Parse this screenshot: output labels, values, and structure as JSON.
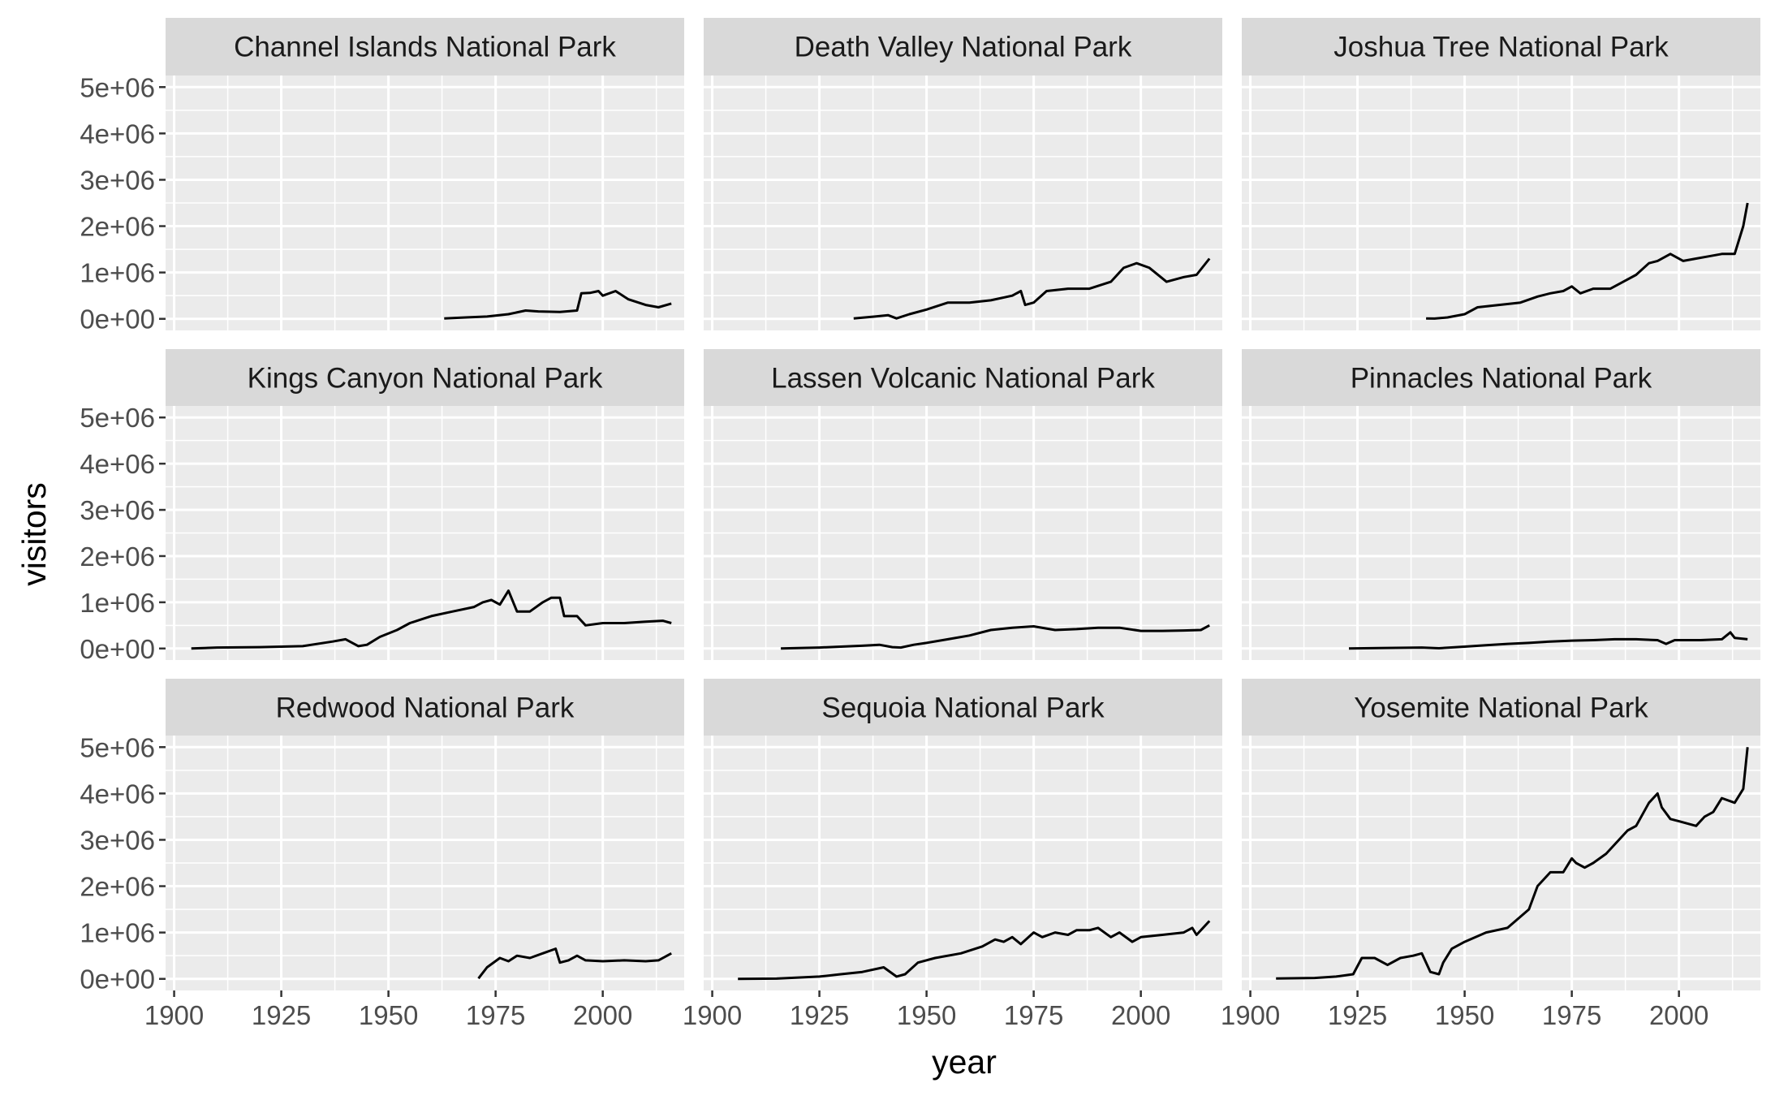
{
  "chart_data": {
    "type": "line",
    "facet_layout": "3x3",
    "xlabel": "year",
    "ylabel": "visitors",
    "xlim": [
      1898,
      2019
    ],
    "ylim": [
      -250000,
      5250000
    ],
    "x_ticks": [
      1900,
      1925,
      1950,
      1975,
      2000
    ],
    "y_ticks": [
      0,
      1000000,
      2000000,
      3000000,
      4000000,
      5000000
    ],
    "x_tick_labels": [
      "1900",
      "1925",
      "1950",
      "1975",
      "2000"
    ],
    "y_tick_labels": [
      "0e+00",
      "1e+06",
      "2e+06",
      "3e+06",
      "4e+06",
      "5e+06"
    ],
    "grid": true,
    "panels": [
      {
        "title": "Channel Islands National Park",
        "x": [
          1963,
          1968,
          1973,
          1978,
          1982,
          1985,
          1990,
          1994,
          1995,
          1997,
          1999,
          2000,
          2003,
          2006,
          2010,
          2013,
          2016
        ],
        "values": [
          10000,
          30000,
          50000,
          100000,
          180000,
          160000,
          150000,
          180000,
          550000,
          560000,
          600000,
          500000,
          600000,
          420000,
          300000,
          250000,
          330000
        ]
      },
      {
        "title": "Death Valley National Park",
        "x": [
          1933,
          1938,
          1941,
          1943,
          1946,
          1950,
          1955,
          1960,
          1965,
          1970,
          1972,
          1973,
          1975,
          1978,
          1983,
          1988,
          1993,
          1996,
          1999,
          2002,
          2006,
          2010,
          2013,
          2016
        ],
        "values": [
          10000,
          50000,
          80000,
          10000,
          100000,
          200000,
          350000,
          350000,
          400000,
          500000,
          600000,
          300000,
          350000,
          600000,
          650000,
          650000,
          800000,
          1100000,
          1200000,
          1100000,
          800000,
          900000,
          950000,
          1300000
        ]
      },
      {
        "title": "Joshua Tree National Park",
        "x": [
          1941,
          1943,
          1946,
          1950,
          1953,
          1958,
          1963,
          1967,
          1970,
          1973,
          1975,
          1977,
          1980,
          1984,
          1987,
          1990,
          1993,
          1995,
          1998,
          2001,
          2004,
          2007,
          2010,
          2013,
          2015,
          2016
        ],
        "values": [
          10000,
          5000,
          30000,
          100000,
          250000,
          300000,
          350000,
          480000,
          550000,
          600000,
          700000,
          550000,
          650000,
          650000,
          800000,
          950000,
          1200000,
          1250000,
          1400000,
          1250000,
          1300000,
          1350000,
          1400000,
          1400000,
          2000000,
          2500000
        ]
      },
      {
        "title": "Kings Canyon National Park",
        "x": [
          1904,
          1910,
          1920,
          1930,
          1937,
          1940,
          1943,
          1945,
          1948,
          1952,
          1955,
          1960,
          1965,
          1970,
          1972,
          1974,
          1976,
          1978,
          1980,
          1983,
          1986,
          1988,
          1990,
          1991,
          1994,
          1996,
          2000,
          2005,
          2010,
          2014,
          2016
        ],
        "values": [
          0,
          20000,
          30000,
          50000,
          150000,
          200000,
          50000,
          80000,
          250000,
          400000,
          550000,
          700000,
          800000,
          900000,
          1000000,
          1050000,
          950000,
          1250000,
          800000,
          800000,
          1000000,
          1100000,
          1100000,
          700000,
          700000,
          500000,
          550000,
          550000,
          580000,
          600000,
          550000
        ]
      },
      {
        "title": "Lassen Volcanic National Park",
        "x": [
          1916,
          1920,
          1925,
          1930,
          1935,
          1939,
          1942,
          1944,
          1947,
          1950,
          1955,
          1960,
          1965,
          1970,
          1975,
          1980,
          1985,
          1990,
          1995,
          2000,
          2005,
          2010,
          2014,
          2016
        ],
        "values": [
          0,
          10000,
          20000,
          40000,
          60000,
          80000,
          30000,
          20000,
          80000,
          120000,
          200000,
          280000,
          400000,
          450000,
          480000,
          400000,
          420000,
          450000,
          450000,
          380000,
          380000,
          390000,
          400000,
          500000
        ]
      },
      {
        "title": "Pinnacles National Park",
        "x": [
          1923,
          1930,
          1940,
          1944,
          1950,
          1955,
          1960,
          1965,
          1970,
          1975,
          1980,
          1985,
          1990,
          1995,
          1997,
          1999,
          2002,
          2005,
          2010,
          2012,
          2013,
          2016
        ],
        "values": [
          0,
          10000,
          20000,
          5000,
          40000,
          70000,
          100000,
          120000,
          150000,
          170000,
          180000,
          200000,
          200000,
          180000,
          100000,
          180000,
          180000,
          180000,
          200000,
          350000,
          230000,
          200000
        ]
      },
      {
        "title": "Redwood National Park",
        "x": [
          1971,
          1973,
          1976,
          1978,
          1980,
          1983,
          1986,
          1989,
          1990,
          1992,
          1994,
          1996,
          2000,
          2005,
          2010,
          2013,
          2016
        ],
        "values": [
          10000,
          250000,
          450000,
          380000,
          500000,
          450000,
          550000,
          650000,
          350000,
          400000,
          500000,
          400000,
          380000,
          400000,
          380000,
          400000,
          550000
        ]
      },
      {
        "title": "Sequoia National Park",
        "x": [
          1906,
          1915,
          1925,
          1930,
          1935,
          1940,
          1943,
          1945,
          1948,
          1952,
          1958,
          1963,
          1966,
          1968,
          1970,
          1972,
          1975,
          1977,
          1980,
          1983,
          1985,
          1988,
          1990,
          1993,
          1995,
          1998,
          2000,
          2005,
          2010,
          2012,
          2013,
          2016
        ],
        "values": [
          0,
          5000,
          50000,
          100000,
          150000,
          250000,
          50000,
          100000,
          350000,
          450000,
          550000,
          700000,
          850000,
          800000,
          900000,
          750000,
          1000000,
          900000,
          1000000,
          950000,
          1050000,
          1050000,
          1100000,
          900000,
          1000000,
          800000,
          900000,
          950000,
          1000000,
          1100000,
          950000,
          1250000
        ]
      },
      {
        "title": "Yosemite National Park",
        "x": [
          1906,
          1915,
          1920,
          1924,
          1926,
          1929,
          1932,
          1935,
          1938,
          1940,
          1942,
          1944,
          1945,
          1947,
          1950,
          1955,
          1960,
          1965,
          1967,
          1970,
          1973,
          1975,
          1976,
          1978,
          1980,
          1983,
          1986,
          1988,
          1990,
          1993,
          1995,
          1996,
          1998,
          2000,
          2004,
          2006,
          2008,
          2010,
          2013,
          2015,
          2016
        ],
        "values": [
          10000,
          20000,
          50000,
          100000,
          450000,
          450000,
          300000,
          450000,
          500000,
          550000,
          150000,
          100000,
          350000,
          650000,
          800000,
          1000000,
          1100000,
          1500000,
          2000000,
          2300000,
          2300000,
          2600000,
          2500000,
          2400000,
          2500000,
          2700000,
          3000000,
          3200000,
          3300000,
          3800000,
          4000000,
          3700000,
          3450000,
          3400000,
          3300000,
          3500000,
          3600000,
          3900000,
          3800000,
          4100000,
          5000000
        ]
      }
    ]
  }
}
